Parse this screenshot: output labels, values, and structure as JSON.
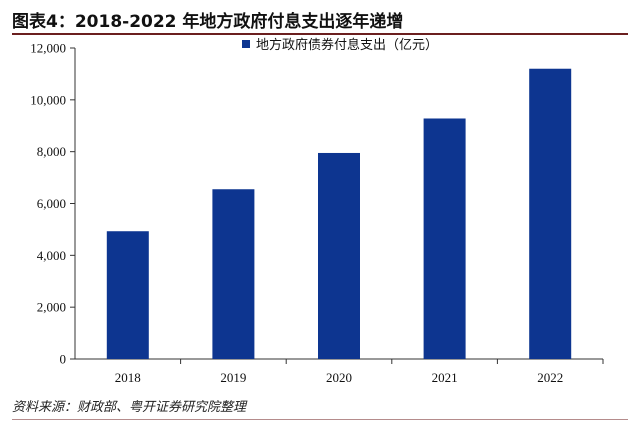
{
  "title": "图表4：2018-2022 年地方政府付息支出逐年递增",
  "source": "资料来源：财政部、粤开证券研究院整理",
  "chart_data": {
    "type": "bar",
    "categories": [
      "2018",
      "2019",
      "2020",
      "2021",
      "2022"
    ],
    "series": [
      {
        "name": "地方政府债券付息支出（亿元）",
        "values": [
          4930,
          6550,
          7950,
          9280,
          11200
        ]
      }
    ],
    "ylim": [
      0,
      12000
    ],
    "yticks": [
      0,
      2000,
      4000,
      6000,
      8000,
      10000,
      12000
    ],
    "ytick_labels": [
      "0",
      "2,000",
      "4,000",
      "6,000",
      "8,000",
      "10,000",
      "12,000"
    ],
    "xlabel": "",
    "ylabel": "",
    "grid": false,
    "legend_position": "top-center",
    "bar_color": "#0d3590"
  }
}
